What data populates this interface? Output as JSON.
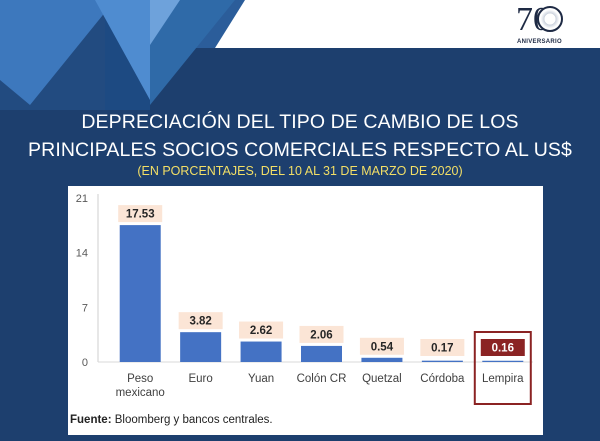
{
  "header": {
    "logo_number": "70",
    "logo_text": "ANIVERSARIO"
  },
  "title_line1": "DEPRECIACIÓN DEL TIPO DE CAMBIO DE LOS",
  "title_line2": "PRINCIPALES SOCIOS COMERCIALES RESPECTO AL US$",
  "subtitle": "(EN PORCENTAJES, DEL 10 AL 31 DE MARZO DE 2020)",
  "source_label": "Fuente:",
  "source_text": "Bloomberg y bancos centrales.",
  "colors": {
    "background": "#1d3f6e",
    "bar": "#4472c4",
    "label_bg": "#fbe5d6",
    "highlight": "#8b2323",
    "subtitle": "#f3df66"
  },
  "chart_data": {
    "type": "bar",
    "categories": [
      "Peso mexicano",
      "Euro",
      "Yuan",
      "Colón CR",
      "Quetzal",
      "Córdoba",
      "Lempira"
    ],
    "values": [
      17.53,
      3.82,
      2.62,
      2.06,
      0.54,
      0.17,
      0.16
    ],
    "value_labels": [
      "17.53",
      "3.82",
      "2.62",
      "2.06",
      "0.54",
      "0.17",
      "0.16"
    ],
    "highlighted": "Lempira",
    "ylim": [
      0,
      21
    ],
    "yticks": [
      0,
      7,
      14,
      21
    ],
    "grid": false
  }
}
